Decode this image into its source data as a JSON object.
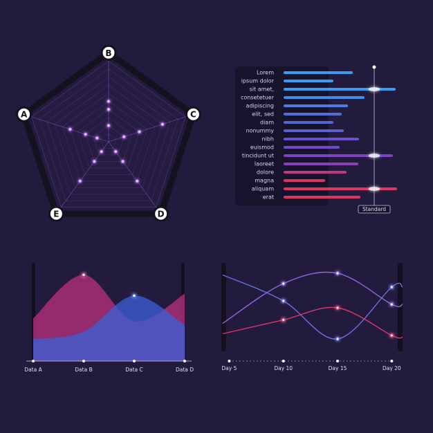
{
  "chart_data": [
    {
      "type": "radar",
      "categories": [
        "A",
        "B",
        "C",
        "D",
        "E"
      ],
      "ylim": [
        0,
        10
      ],
      "yticks": [
        1,
        2,
        3,
        4,
        5,
        6,
        7,
        8,
        9,
        10
      ],
      "grid": true,
      "series": [
        {
          "color": "#c77dff",
          "values": [
            5,
            5,
            7,
            6,
            6
          ]
        },
        {
          "color": "#c77dff",
          "values": [
            3,
            4,
            4,
            3,
            3
          ]
        },
        {
          "color": "#c77dff",
          "values": [
            1.5,
            2,
            2,
            1.5,
            1.5
          ]
        }
      ]
    },
    {
      "type": "hbar",
      "categories": [
        "Lorem",
        "ipsum dolor",
        "sit amet,",
        "consetetuer",
        "adipiscing",
        "elit, sed",
        "diam",
        "nonummy",
        "nibh",
        "euismod",
        "tincidunt ut",
        "laoreet",
        "dolore",
        "magna",
        "aliquam",
        "erat"
      ],
      "values": [
        100,
        72,
        162,
        117,
        93,
        84,
        72,
        87,
        109,
        81,
        158,
        108,
        91,
        60,
        164,
        111
      ],
      "colors": [
        "#3a9cf0",
        "#3a9cf0",
        "#3a9cf0",
        "#3a90ec",
        "#4a7ee0",
        "#4f6fd6",
        "#5466cf",
        "#5a5fc9",
        "#6a4fd0",
        "#7248c8",
        "#7a44c4",
        "#8a40b4",
        "#c03a7a",
        "#d8365e",
        "#e03560",
        "#e03560"
      ],
      "xlim": [
        0,
        170
      ],
      "annotation": {
        "text": "Standard",
        "value": 131
      }
    },
    {
      "type": "area",
      "categories": [
        "Data A",
        "Data B",
        "Data C",
        "Data D"
      ],
      "ylim": [
        0,
        100
      ],
      "series": [
        {
          "color": "#b0307a",
          "values": [
            45,
            91,
            42,
            71
          ]
        },
        {
          "color": "#3b62d8",
          "values": [
            23,
            31,
            69,
            38
          ]
        }
      ]
    },
    {
      "type": "line",
      "xlim": [
        4.4,
        21
      ],
      "ylim": [
        0,
        100
      ],
      "xticks": [
        {
          "value": 5,
          "label": "Day 5"
        },
        {
          "value": 10,
          "label": "Day 10"
        },
        {
          "value": 15,
          "label": "Day 15"
        },
        {
          "value": 20,
          "label": "Day 20"
        }
      ],
      "x": [
        4.4,
        10,
        15,
        20,
        21
      ],
      "series": [
        {
          "color": "#6a72e0",
          "values": [
            86,
            56,
            12,
            72,
            72
          ]
        },
        {
          "color": "#8a6ae0",
          "values": [
            30,
            76,
            88,
            52,
            52
          ]
        },
        {
          "color": "#e0356e",
          "values": [
            18,
            34,
            48,
            16,
            14
          ]
        }
      ]
    }
  ]
}
